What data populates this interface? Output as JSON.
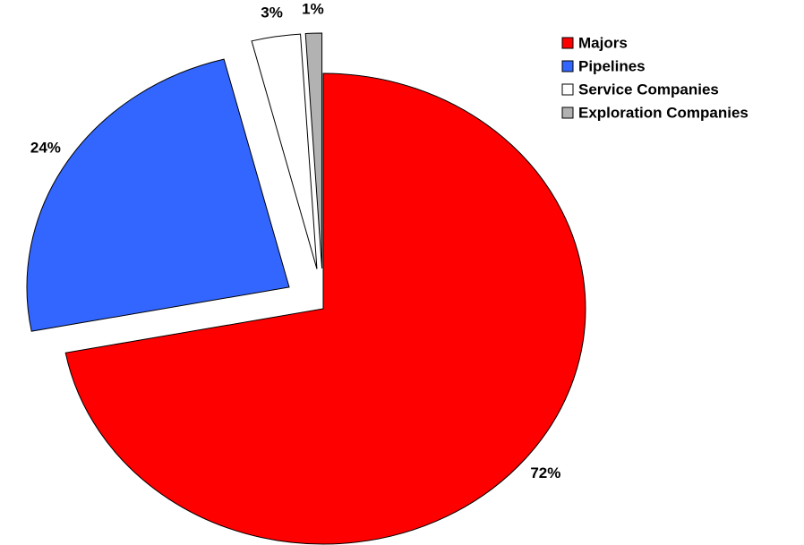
{
  "chart_data": {
    "type": "pie",
    "categories": [
      "Majors",
      "Pipelines",
      "Service Companies",
      "Exploration Companies"
    ],
    "values": [
      72,
      24,
      3,
      1
    ],
    "value_labels": [
      "72%",
      "24%",
      "3%",
      "1%"
    ],
    "colors": [
      "#ff0000",
      "#3366ff",
      "#ffffff",
      "#b2b2b2"
    ],
    "legend": "top-right"
  }
}
